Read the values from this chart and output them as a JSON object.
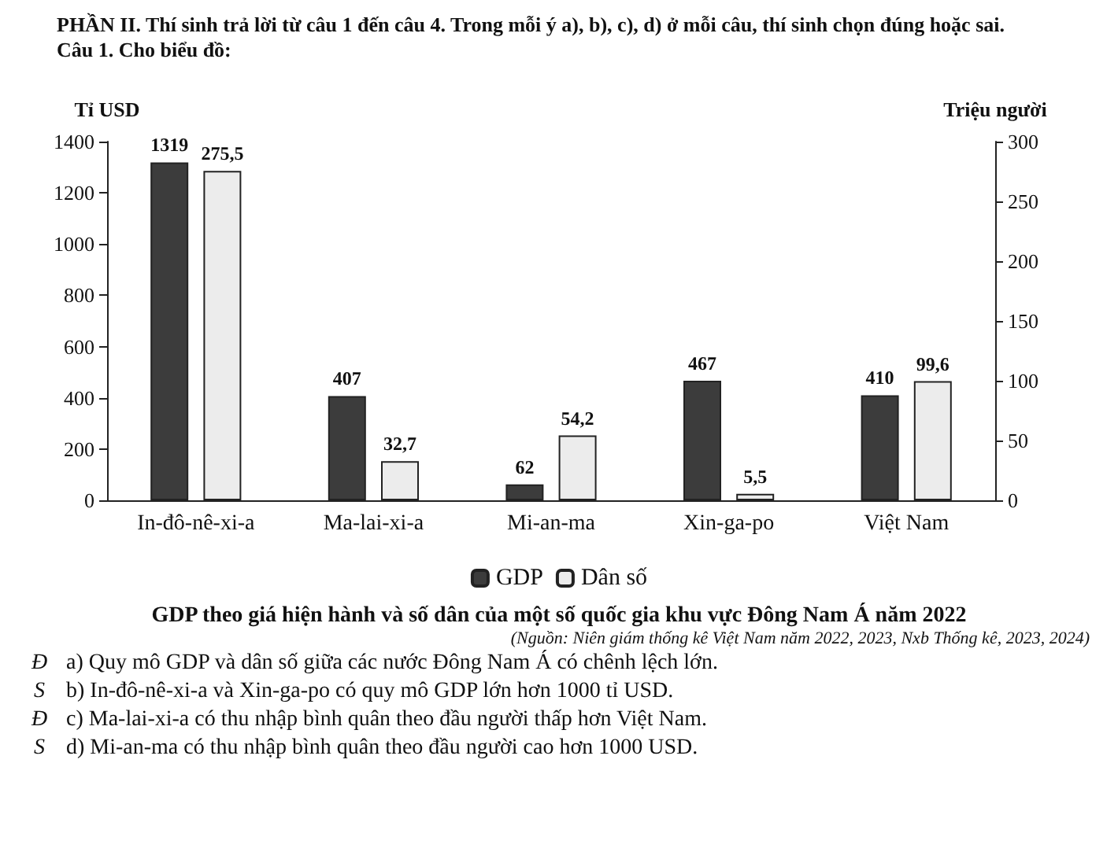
{
  "chart_data": {
    "type": "bar",
    "title": "GDP theo giá hiện hành và số dân của một số quốc gia khu vực Đông Nam Á năm 2022",
    "ylabel": "Tỉ USD",
    "y2label": "Triệu người",
    "categories": [
      "In-đô-nê-xi-a",
      "Ma-lai-xi-a",
      "Mi-an-ma",
      "Xin-ga-po",
      "Việt Nam"
    ],
    "series": [
      {
        "name": "GDP",
        "color": "#3c3c3c",
        "values": [
          1319,
          407,
          62,
          467,
          410
        ],
        "value_labels": [
          "1319",
          "407",
          "62",
          "467",
          "410"
        ]
      },
      {
        "name": "Dân số",
        "color": "#ececec",
        "axis": "y2",
        "values": [
          275.5,
          32.7,
          54.2,
          5.5,
          99.6
        ],
        "value_labels": [
          "275,5",
          "32,7",
          "54,2",
          "5,5",
          "99,6"
        ]
      }
    ],
    "ylim": [
      0,
      1400
    ],
    "yticks": [
      0,
      200,
      400,
      600,
      800,
      1000,
      1200,
      1400
    ],
    "y2lim": [
      0,
      300
    ],
    "y2ticks": [
      0,
      50,
      100,
      150,
      200,
      250,
      300
    ],
    "grid": false,
    "legend": "bottom",
    "annotations": [
      "PHẦN II. Thí sinh trả lời từ câu 1 đến câu 4. Trong mỗi ý a), b), c), d) ở mỗi câu, thí sinh chọn đúng hoặc sai.",
      "Câu 1. Cho biểu đồ:",
      "(Nguồn: Niên giám thống kê Việt Nam năm 2022, 2023, Nxb Thống kê, 2023, 2024)",
      "a) Quy mô GDP và dân số giữa các nước Đông Nam Á có chênh lệch lớn.",
      "b) In-đô-nê-xi-a và Xin-ga-po có quy mô GDP lớn hơn 1000 tỉ USD.",
      "c) Ma-lai-xi-a có thu nhập bình quân theo đầu người thấp hơn Việt Nam.",
      "d) Mi-an-ma có thu nhập bình quân theo đầu người cao hơn 1000 USD.",
      "Đ",
      "S",
      "Đ",
      "S"
    ]
  }
}
